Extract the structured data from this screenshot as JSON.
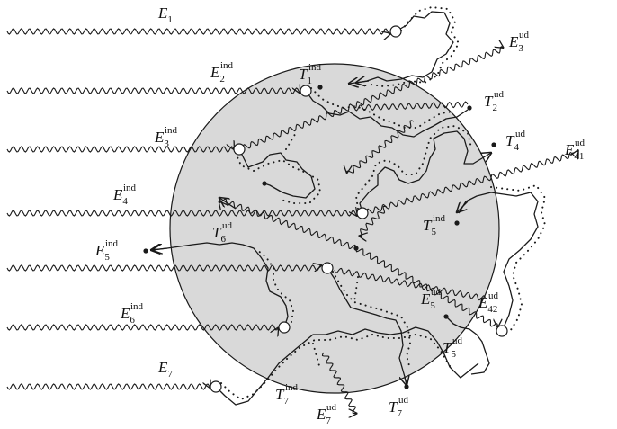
{
  "diagram": {
    "colors": {
      "sphere_fill": "#d9d9d9",
      "stroke": "#1a1a1a"
    },
    "labels": {
      "E1": {
        "main": "E",
        "sub": "1",
        "sup": ""
      },
      "E2": {
        "main": "E",
        "sub": "2",
        "sup": "ind"
      },
      "E3i": {
        "main": "E",
        "sub": "3",
        "sup": "ind"
      },
      "E3u": {
        "main": "E",
        "sub": "3",
        "sup": "ud"
      },
      "E4": {
        "main": "E",
        "sub": "4",
        "sup": "ind"
      },
      "E41": {
        "main": "E",
        "sub": "41",
        "sup": "ud"
      },
      "E42": {
        "main": "E",
        "sub": "42",
        "sup": "ud"
      },
      "E5i": {
        "main": "E",
        "sub": "5",
        "sup": "ind"
      },
      "E5u": {
        "main": "E",
        "sub": "5",
        "sup": "ud"
      },
      "E6": {
        "main": "E",
        "sub": "6",
        "sup": "ind"
      },
      "E7": {
        "main": "E",
        "sub": "7",
        "sup": ""
      },
      "E7u": {
        "main": "E",
        "sub": "7",
        "sup": "ud"
      },
      "T1": {
        "main": "T",
        "sub": "1",
        "sup": "ind"
      },
      "T2": {
        "main": "T",
        "sub": "2",
        "sup": "ud"
      },
      "T4": {
        "main": "T",
        "sub": "4",
        "sup": "ud"
      },
      "T5i": {
        "main": "T",
        "sub": "5",
        "sup": "ind"
      },
      "T5u": {
        "main": "T",
        "sub": "5",
        "sup": "ud"
      },
      "T6": {
        "main": "T",
        "sub": "6",
        "sup": "ud"
      },
      "T7i": {
        "main": "T",
        "sub": "7",
        "sup": "ind"
      },
      "T7u": {
        "main": "T",
        "sub": "7",
        "sup": "ud"
      }
    }
  }
}
